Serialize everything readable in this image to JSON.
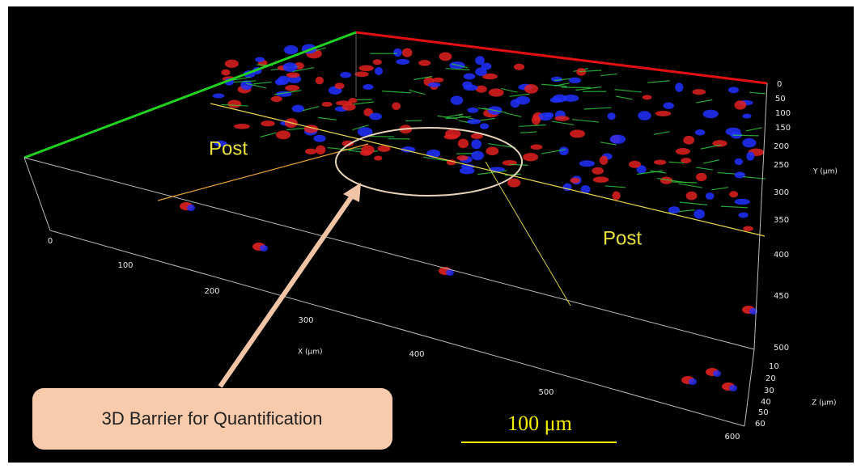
{
  "annotations": {
    "post_left": "Post",
    "post_right": "Post",
    "callout": "3D Barrier for Quantification",
    "scale_bar": "100 μm"
  },
  "axes": {
    "x": {
      "label": "X (μm)",
      "ticks": [
        0,
        100,
        200,
        300,
        400,
        500,
        600
      ]
    },
    "y": {
      "label": "Y (μm)",
      "ticks": [
        0,
        50,
        100,
        150,
        200,
        250,
        300,
        350,
        400,
        450,
        500
      ]
    },
    "z": {
      "label": "Z (μm)",
      "ticks": [
        10,
        20,
        30,
        40,
        50,
        60
      ]
    }
  }
}
